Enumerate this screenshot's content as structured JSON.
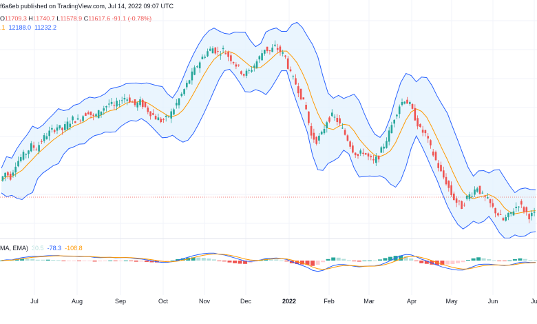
{
  "header": {
    "publisher_line": "f6a6eb published on TradingView.com, Jul 14, 2022 09:07 UTC",
    "ohlc": {
      "o_label": "O",
      "o": "11709.3",
      "h_label": "H",
      "h": "11740.7",
      "l_label": "L",
      "l": "11578.9",
      "c_label": "C",
      "c": "11617.6",
      "change": "-91.1 (-0.78%)"
    },
    "bollinger": {
      "mid": ".1",
      "upper": "12188.0",
      "lower": "11232.2"
    }
  },
  "macd_legend": {
    "prefix": "MA, EMA)",
    "hist": "30.5",
    "macd": "-78.3",
    "signal": "-108.8"
  },
  "x_axis": {
    "labels": [
      "Jul",
      "Aug",
      "Sep",
      "Oct",
      "Nov",
      "Dec",
      "2022",
      "Feb",
      "Mar",
      "Apr",
      "May",
      "Jun",
      "Ju"
    ]
  },
  "colors": {
    "up": "#26a69a",
    "down": "#ef5350",
    "band": "#2962ff",
    "band_fill": "#e3f2fd",
    "basis": "#ff9800",
    "macd": "#2962ff",
    "signal": "#ff9800",
    "grid": "#f0f3fa",
    "price_line": "#ef5350"
  },
  "chart_data": {
    "type": "candlestick",
    "price_path": [
      9.0,
      10.0,
      9.5,
      11.2,
      12.0,
      12.6,
      13.5,
      13.2,
      14.2,
      15.0,
      15.5,
      16.0,
      15.6,
      16.4,
      17.0,
      16.8,
      17.5,
      18.0,
      17.2,
      17.8,
      18.5,
      19.0,
      18.6,
      19.3,
      19.8,
      19.5,
      18.8,
      19.2,
      18.5,
      17.8,
      17.2,
      16.8,
      17.0,
      17.8,
      19.0,
      20.2,
      21.5,
      22.8,
      24.0,
      25.0,
      25.8,
      26.2,
      25.6,
      26.0,
      25.2,
      24.5,
      23.6,
      22.8,
      23.2,
      24.0,
      25.0,
      26.2,
      25.8,
      26.4,
      25.8,
      25.0,
      22.8,
      21.6,
      20.0,
      18.2,
      14.8,
      14.2,
      15.0,
      16.8,
      17.4,
      16.8,
      15.6,
      14.4,
      13.0,
      12.2,
      12.8,
      12.0,
      11.4,
      12.2,
      13.6,
      15.2,
      17.2,
      18.8,
      19.6,
      18.8,
      17.2,
      15.6,
      15.0,
      13.2,
      11.6,
      10.0,
      8.8,
      7.2,
      6.2,
      5.6,
      6.8,
      7.4,
      8.2,
      7.0,
      6.4,
      5.4,
      4.6,
      3.8,
      4.4,
      5.2,
      6.0,
      5.2,
      4.4,
      4.6
    ]
  }
}
